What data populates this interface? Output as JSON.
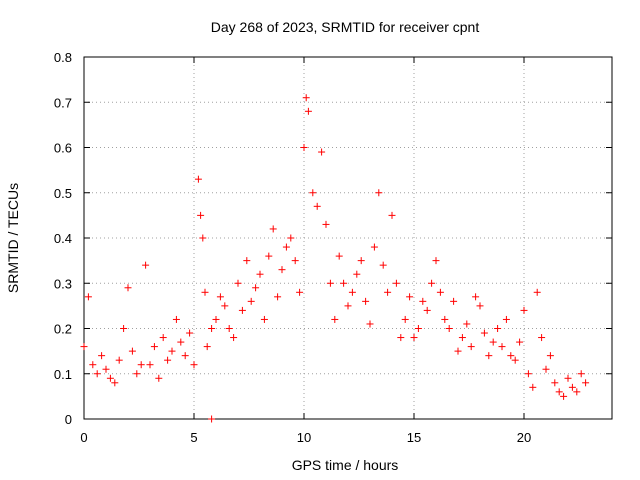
{
  "chart_data": {
    "type": "scatter",
    "title": "Day 268 of 2023, SRMTID for receiver cpnt",
    "xlabel": "GPS time / hours",
    "ylabel": "SRMTID / TECUs",
    "xlim": [
      0,
      24
    ],
    "ylim": [
      0,
      0.8
    ],
    "xticks": [
      0,
      5,
      10,
      15,
      20
    ],
    "xtick_labels": [
      "0",
      "5",
      "10",
      "15",
      "20"
    ],
    "yticks": [
      0,
      0.1,
      0.2,
      0.3,
      0.4,
      0.5,
      0.6,
      0.7,
      0.8
    ],
    "ytick_labels": [
      "0",
      "0.1",
      "0.2",
      "0.3",
      "0.4",
      "0.5",
      "0.6",
      "0.7",
      "0.8"
    ],
    "grid": true,
    "marker": "+",
    "series": [
      {
        "name": "SRMTID",
        "color": "#ff0000",
        "x": [
          0.0,
          0.2,
          0.4,
          0.6,
          0.8,
          1.0,
          1.2,
          1.4,
          1.6,
          1.8,
          2.0,
          2.2,
          2.4,
          2.6,
          2.8,
          3.0,
          3.2,
          3.4,
          3.6,
          3.8,
          4.0,
          4.2,
          4.4,
          4.6,
          4.8,
          5.0,
          5.2,
          5.3,
          5.4,
          5.5,
          5.6,
          5.8,
          6.0,
          6.2,
          6.4,
          6.6,
          6.8,
          7.0,
          7.2,
          7.4,
          7.6,
          7.8,
          8.0,
          8.2,
          8.4,
          8.6,
          8.8,
          9.0,
          9.2,
          9.4,
          9.6,
          9.8,
          10.0,
          10.1,
          10.2,
          10.4,
          10.6,
          10.8,
          11.0,
          11.2,
          11.4,
          11.6,
          11.8,
          12.0,
          12.2,
          12.4,
          12.6,
          12.8,
          13.0,
          13.2,
          13.4,
          13.6,
          13.8,
          14.0,
          14.2,
          14.4,
          14.6,
          14.8,
          15.0,
          15.2,
          15.4,
          15.6,
          15.8,
          16.0,
          16.2,
          16.4,
          16.6,
          16.8,
          17.0,
          17.2,
          17.4,
          17.6,
          17.8,
          18.0,
          18.2,
          18.4,
          18.6,
          18.8,
          19.0,
          19.2,
          19.4,
          19.6,
          19.8,
          20.0,
          20.2,
          20.4,
          20.6,
          20.8,
          21.0,
          21.2,
          21.4,
          21.6,
          21.8,
          22.0,
          22.2,
          22.4,
          22.6,
          22.8
        ],
        "y": [
          0.16,
          0.27,
          0.12,
          0.1,
          0.14,
          0.11,
          0.09,
          0.08,
          0.13,
          0.2,
          0.29,
          0.15,
          0.1,
          0.12,
          0.34,
          0.12,
          0.16,
          0.09,
          0.18,
          0.13,
          0.15,
          0.22,
          0.17,
          0.14,
          0.19,
          0.12,
          0.53,
          0.45,
          0.4,
          0.28,
          0.16,
          0.2,
          0.22,
          0.27,
          0.25,
          0.2,
          0.18,
          0.3,
          0.24,
          0.35,
          0.26,
          0.29,
          0.32,
          0.22,
          0.36,
          0.42,
          0.27,
          0.33,
          0.38,
          0.4,
          0.35,
          0.28,
          0.6,
          0.71,
          0.68,
          0.5,
          0.47,
          0.59,
          0.43,
          0.3,
          0.22,
          0.36,
          0.3,
          0.25,
          0.28,
          0.32,
          0.35,
          0.26,
          0.21,
          0.38,
          0.5,
          0.34,
          0.28,
          0.45,
          0.3,
          0.18,
          0.22,
          0.27,
          0.18,
          0.2,
          0.26,
          0.24,
          0.3,
          0.35,
          0.28,
          0.22,
          0.2,
          0.26,
          0.15,
          0.18,
          0.21,
          0.16,
          0.27,
          0.25,
          0.19,
          0.14,
          0.17,
          0.2,
          0.16,
          0.22,
          0.14,
          0.13,
          0.17,
          0.24,
          0.1,
          0.07,
          0.28,
          0.18,
          0.11,
          0.14,
          0.08,
          0.06,
          0.05,
          0.09,
          0.07,
          0.06,
          0.1,
          0.08
        ],
        "outlier": {
          "x": 5.8,
          "y": 0.0
        }
      }
    ]
  }
}
